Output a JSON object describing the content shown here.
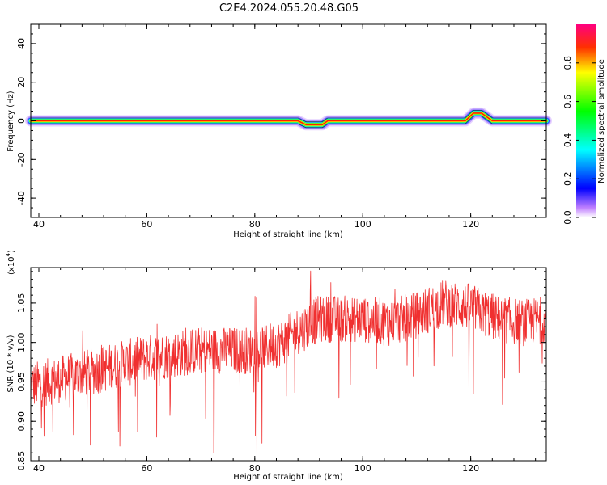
{
  "title": "C2E4.2024.055.20.48.G05",
  "chart_data": [
    {
      "type": "heatmap",
      "xlabel": "Height of straight line (km)",
      "ylabel": "Frequency (Hz)",
      "xlim": [
        38.5,
        134
      ],
      "ylim": [
        -50,
        50
      ],
      "xticks": [
        40,
        60,
        80,
        100,
        120
      ],
      "yticks": [
        40,
        20,
        0,
        -20,
        -40
      ],
      "colorbar": {
        "label": "Normalized spectral amplitude",
        "range": [
          0,
          1
        ],
        "ticks": [
          "0.0",
          "0.2",
          "0.4",
          "0.6",
          "0.8"
        ]
      },
      "ridge": [
        {
          "x": 38.5,
          "f": 0
        },
        {
          "x": 88,
          "f": 0
        },
        {
          "x": 89.5,
          "f": -2
        },
        {
          "x": 92.5,
          "f": -2
        },
        {
          "x": 93.5,
          "f": 0
        },
        {
          "x": 119,
          "f": 0
        },
        {
          "x": 120.5,
          "f": 4
        },
        {
          "x": 122,
          "f": 4
        },
        {
          "x": 124,
          "f": 0
        },
        {
          "x": 134,
          "f": 0
        }
      ]
    },
    {
      "type": "line",
      "xlabel": "Height of straight line (km)",
      "ylabel": "SNR (10 * v/v)",
      "multiplier_label": "(x10",
      "multiplier_exp": "4",
      "multiplier_close": ")",
      "xlim": [
        38.5,
        134
      ],
      "ylim": [
        0.85,
        1.095
      ],
      "xticks": [
        40,
        60,
        80,
        100,
        120
      ],
      "yticks": [
        "0.85",
        "0.90",
        "0.95",
        "1.00",
        "1.05"
      ],
      "series": [
        {
          "color": "#f03030",
          "trend_x": [
            38.5,
            45,
            50,
            55,
            60,
            65,
            70,
            75,
            80,
            85,
            88,
            92,
            95,
            100,
            105,
            110,
            115,
            120,
            125,
            130,
            134
          ],
          "trend_y": [
            0.945,
            0.955,
            0.963,
            0.972,
            0.98,
            0.985,
            0.99,
            0.99,
            0.99,
            1.0,
            1.015,
            1.03,
            1.03,
            1.03,
            1.025,
            1.035,
            1.05,
            1.045,
            1.03,
            1.025,
            1.03
          ]
        }
      ]
    }
  ]
}
